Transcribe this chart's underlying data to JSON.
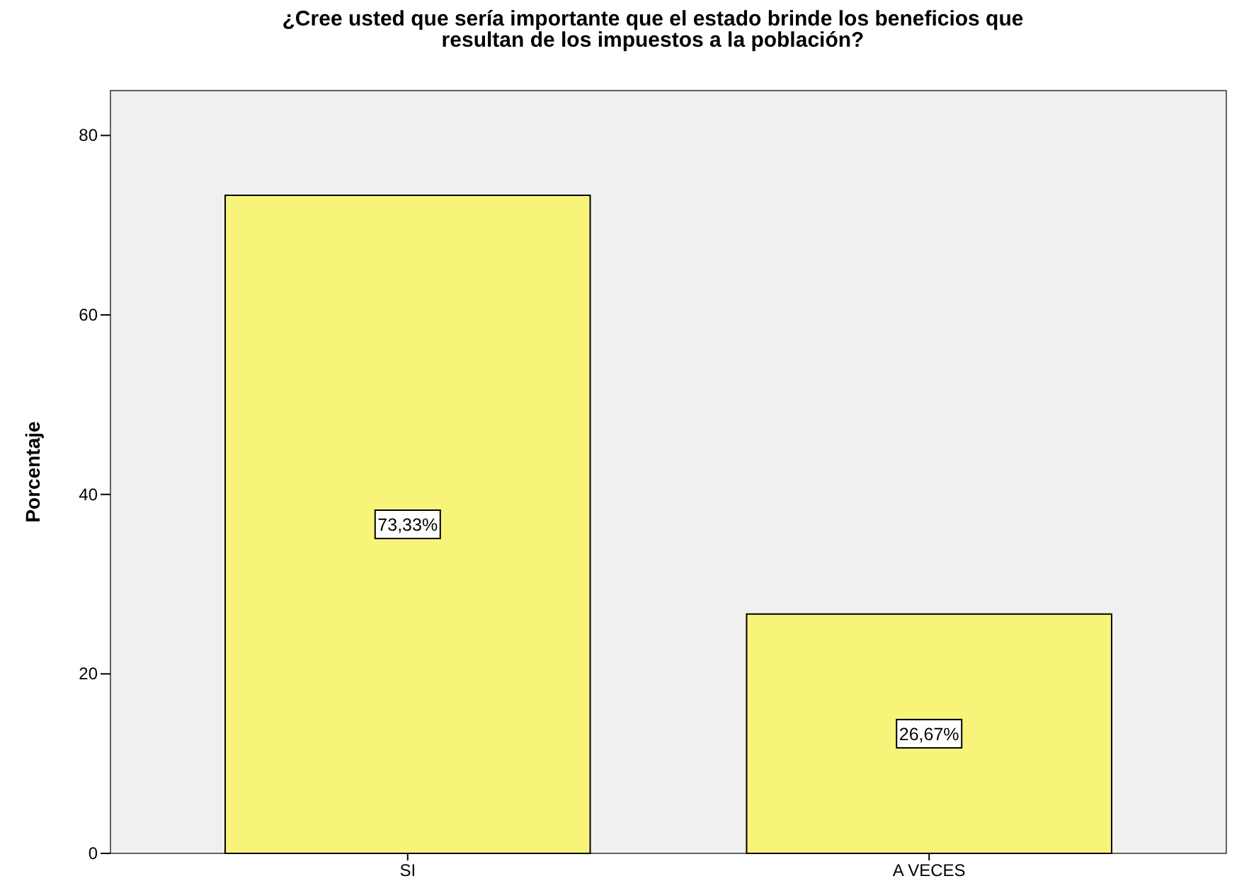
{
  "chart_data": {
    "type": "bar",
    "title": "¿Cree usted que sería importante que el estado brinde los beneficios que resultan de los impuestos a la población?",
    "ylabel": "Porcentaje",
    "categories": [
      "SI",
      "A VECES"
    ],
    "values": [
      73.33,
      26.67
    ],
    "value_labels": [
      "73,33%",
      "26,67%"
    ],
    "color": "#f8f47a",
    "ylim": [
      0,
      85
    ],
    "yticks": [
      0,
      20,
      40,
      60,
      80
    ],
    "grid": false
  }
}
